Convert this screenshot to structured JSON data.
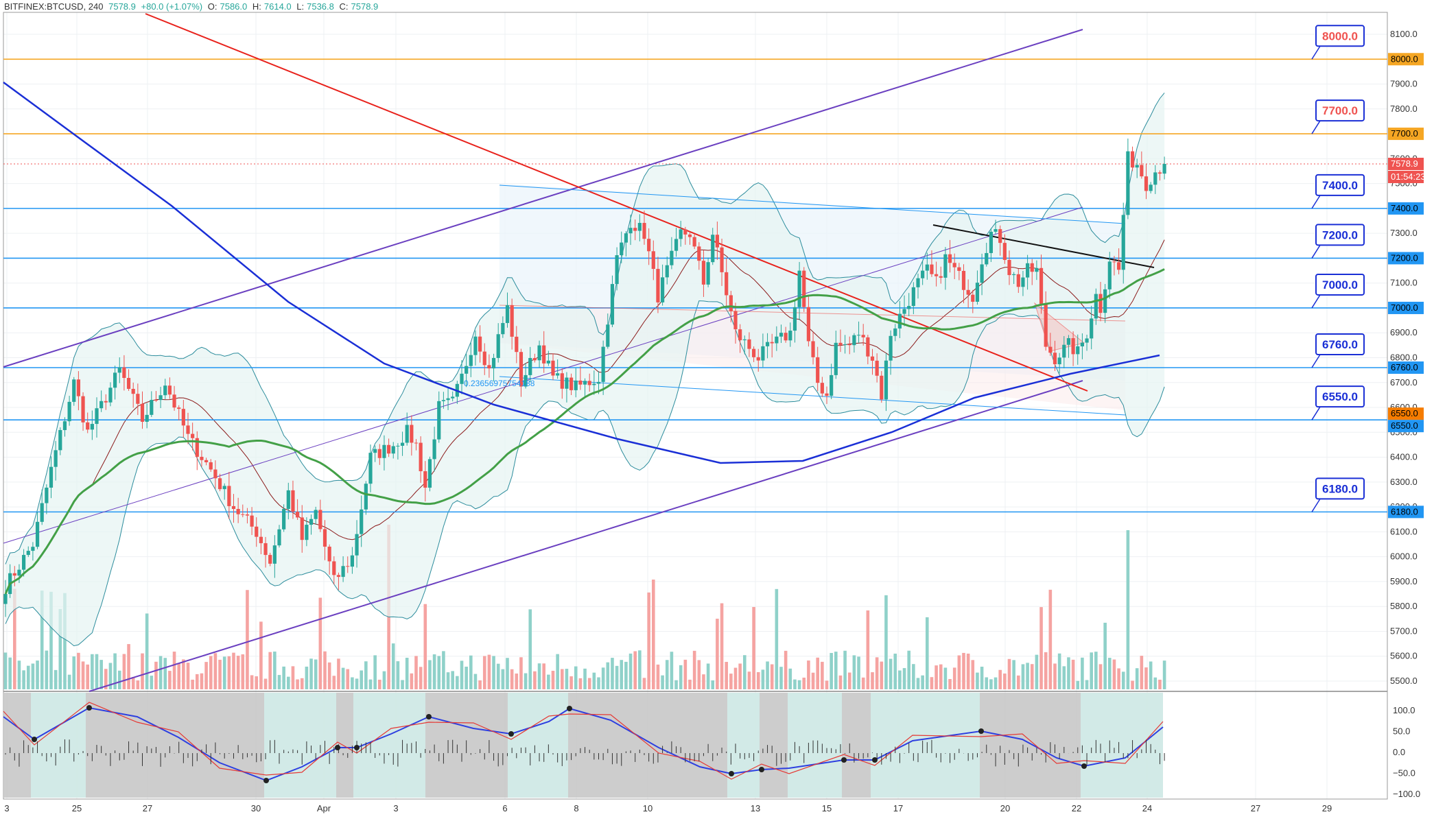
{
  "header": {
    "symbol": "BITFINEX:BTCUSD, 240",
    "last": "7578.9",
    "change": "+80.0 (+1.07%)",
    "o_label": "O:",
    "o": "7586.0",
    "h_label": "H:",
    "h": "7614.0",
    "l_label": "L:",
    "l": "7536.8",
    "c_label": "C:",
    "c": "7578.9"
  },
  "colors": {
    "up": "#26a69a",
    "down": "#ef5350",
    "blue": "#2196f3",
    "orange": "#f5a623",
    "red_trend": "#e8211b",
    "purple": "#6a3fc0",
    "navy": "#1a2fd6",
    "green_ma": "#43a047"
  },
  "price_axis": {
    "ticks": [
      "8100.0",
      "8000.0",
      "7900.0",
      "7800.0",
      "7700.0",
      "7600.0",
      "7500.0",
      "7400.0",
      "7300.0",
      "7200.0",
      "7100.0",
      "7000.0",
      "6900.0",
      "6800.0",
      "6700.0",
      "6600.0",
      "6500.0",
      "6400.0",
      "6300.0",
      "6200.0",
      "6100.0",
      "6000.0",
      "5900.0",
      "5800.0",
      "5700.0",
      "5600.0",
      "5500.0"
    ]
  },
  "osc_axis": {
    "ticks": [
      "100.0",
      "50.0",
      "0.0",
      "−50.0",
      "−100.0"
    ]
  },
  "time_axis": {
    "ticks": [
      "3",
      "25",
      "27",
      "30",
      "Apr",
      "3",
      "6",
      "8",
      "10",
      "13",
      "15",
      "17",
      "20",
      "22",
      "24",
      "27",
      "29"
    ]
  },
  "price_badges": {
    "current": "7578.9",
    "countdown": "01:54:23",
    "h8000": "8000.0",
    "h7700": "7700.0",
    "h7400": "7400.0",
    "h7200": "7200.0",
    "h7000": "7000.0",
    "h6760": "6760.0",
    "h6550a": "6550.0",
    "h6550b": "6550.0",
    "h6180": "6180.0"
  },
  "annotations": {
    "l8000": "8000.0",
    "l7700": "7700.0",
    "l7400": "7400.0",
    "l7200": "7200.0",
    "l7000": "7000.0",
    "l6760": "6760.0",
    "l6550": "6550.0",
    "l6180": "6180.0",
    "fib": "0.23656975754188"
  },
  "chart_data": {
    "type": "candlestick",
    "symbol": "BITFINEX:BTCUSD",
    "timeframe": "240",
    "ylim": [
      5450,
      8150
    ],
    "horizontal_levels": [
      8000,
      7700,
      7400,
      7200,
      7000,
      6760,
      6550,
      6180
    ],
    "ohlc_path": [
      [
        0,
        5880
      ],
      [
        6,
        6050
      ],
      [
        10,
        6350
      ],
      [
        15,
        6700
      ],
      [
        18,
        6500
      ],
      [
        25,
        6750
      ],
      [
        30,
        6550
      ],
      [
        35,
        6700
      ],
      [
        40,
        6480
      ],
      [
        45,
        6350
      ],
      [
        50,
        6200
      ],
      [
        55,
        6100
      ],
      [
        58,
        5980
      ],
      [
        62,
        6260
      ],
      [
        65,
        6070
      ],
      [
        68,
        6180
      ],
      [
        72,
        5900
      ],
      [
        76,
        6000
      ],
      [
        80,
        6400
      ],
      [
        85,
        6450
      ],
      [
        88,
        6500
      ],
      [
        90,
        6450
      ],
      [
        92,
        6280
      ],
      [
        95,
        6600
      ],
      [
        98,
        6620
      ],
      [
        100,
        6720
      ],
      [
        103,
        6900
      ],
      [
        106,
        6750
      ],
      [
        108,
        6880
      ],
      [
        110,
        7000
      ],
      [
        113,
        6700
      ],
      [
        117,
        6850
      ],
      [
        120,
        6720
      ],
      [
        125,
        6680
      ],
      [
        130,
        6720
      ],
      [
        134,
        7200
      ],
      [
        137,
        7350
      ],
      [
        140,
        7300
      ],
      [
        143,
        7050
      ],
      [
        148,
        7300
      ],
      [
        150,
        7300
      ],
      [
        153,
        7100
      ],
      [
        155,
        7300
      ],
      [
        160,
        6900
      ],
      [
        165,
        6800
      ],
      [
        168,
        6850
      ],
      [
        172,
        6900
      ],
      [
        174,
        7150
      ],
      [
        176,
        6850
      ],
      [
        178,
        6700
      ],
      [
        180,
        6650
      ],
      [
        182,
        6850
      ],
      [
        185,
        6850
      ],
      [
        187,
        6900
      ],
      [
        190,
        6800
      ],
      [
        192,
        6650
      ],
      [
        194,
        6900
      ],
      [
        197,
        7000
      ],
      [
        200,
        7100
      ],
      [
        202,
        7150
      ],
      [
        204,
        7100
      ],
      [
        206,
        7200
      ],
      [
        210,
        7100
      ],
      [
        212,
        7050
      ],
      [
        214,
        7200
      ],
      [
        216,
        7300
      ],
      [
        218,
        7280
      ],
      [
        220,
        7150
      ],
      [
        222,
        7100
      ],
      [
        224,
        7150
      ],
      [
        226,
        7150
      ],
      [
        228,
        6850
      ],
      [
        230,
        6800
      ],
      [
        233,
        6850
      ],
      [
        235,
        6820
      ],
      [
        237,
        6900
      ],
      [
        239,
        7050
      ],
      [
        240,
        7000
      ],
      [
        242,
        7200
      ],
      [
        244,
        7150
      ],
      [
        246,
        7600
      ],
      [
        248,
        7580
      ],
      [
        250,
        7500
      ],
      [
        252,
        7550
      ],
      [
        254,
        7578.9
      ]
    ],
    "volume_peak": 6150,
    "indicators": [
      "Bollinger Bands",
      "Moving Average",
      "Stochastic oscillator"
    ]
  }
}
